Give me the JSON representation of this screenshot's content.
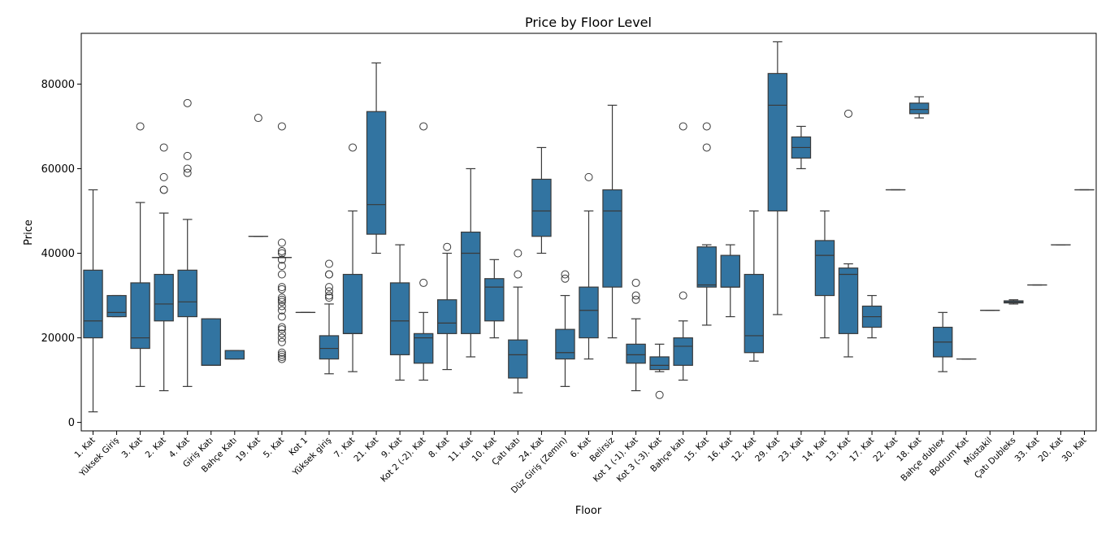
{
  "chart_data": {
    "type": "box",
    "title": "Price by Floor Level",
    "xlabel": "Floor",
    "ylabel": "Price",
    "ylim": [
      -2000,
      92000
    ],
    "yticks": [
      0,
      20000,
      40000,
      60000,
      80000
    ],
    "grid": false,
    "legend": "none",
    "box_color": "#3274a1",
    "line_color": "#3a3a3a",
    "categories": [
      "1. Kat",
      "Yüksek Giriş",
      "3. Kat",
      "2. Kat",
      "4. Kat",
      "Giriş Katı",
      "Bahçe Katı",
      "19. Kat",
      "5. Kat",
      "Kot 1",
      "Yüksek giriş",
      "7. Kat",
      "21. Kat",
      "9. Kat",
      "Kot 2 (-2). Kat",
      "8. Kat",
      "11. Kat",
      "10. Kat",
      "Çatı katı",
      "24. Kat",
      "Düz Giriş (Zemin)",
      "6. Kat",
      "Belirsiz",
      "Kot 1 (-1). Kat",
      "Kot 3 (-3). Kat",
      "Bahçe katı",
      "15. Kat",
      "16. Kat",
      "12. Kat",
      "29. Kat",
      "23. Kat",
      "14. Kat",
      "13. Kat",
      "17. Kat",
      "22. Kat",
      "18. Kat",
      "Bahçe dublex",
      "Bodrum Kat",
      "Müstakil",
      "Çatı Dubleks",
      "33. Kat",
      "20. Kat",
      "30. Kat"
    ],
    "boxes": [
      {
        "whislo": 2500,
        "q1": 20000,
        "med": 24000,
        "q3": 36000,
        "whishi": 55000,
        "fliers": []
      },
      {
        "whislo": 25000,
        "q1": 25000,
        "med": 26000,
        "q3": 30000,
        "whishi": 30000,
        "fliers": []
      },
      {
        "whislo": 8500,
        "q1": 17500,
        "med": 20000,
        "q3": 33000,
        "whishi": 52000,
        "fliers": [
          70000
        ]
      },
      {
        "whislo": 7500,
        "q1": 24000,
        "med": 28000,
        "q3": 35000,
        "whishi": 49500,
        "fliers": [
          55000,
          55000,
          58000,
          65000
        ]
      },
      {
        "whislo": 8500,
        "q1": 25000,
        "med": 28500,
        "q3": 36000,
        "whishi": 48000,
        "fliers": [
          59000,
          60000,
          63000,
          75500
        ]
      },
      {
        "whislo": 13500,
        "q1": 13500,
        "med": 13500,
        "q3": 24500,
        "whishi": 24500,
        "fliers": []
      },
      {
        "whislo": 15000,
        "q1": 15000,
        "med": 15000,
        "q3": 17000,
        "whishi": 17000,
        "fliers": []
      },
      {
        "whislo": 44000,
        "q1": 44000,
        "med": 44000,
        "q3": 44000,
        "whishi": 44000,
        "fliers": [
          72000
        ]
      },
      {
        "whislo": 39000,
        "q1": 39000,
        "med": 39000,
        "q3": 39000,
        "whishi": 39000,
        "fliers": [
          15000,
          15500,
          16000,
          16500,
          19000,
          20000,
          21000,
          22000,
          22500,
          25000,
          26500,
          27500,
          28500,
          29000,
          29500,
          31500,
          32000,
          35000,
          37000,
          38500,
          40000,
          40500,
          42500,
          70000
        ]
      },
      {
        "whislo": 26000,
        "q1": 26000,
        "med": 26000,
        "q3": 26000,
        "whishi": 26000,
        "fliers": []
      },
      {
        "whislo": 11500,
        "q1": 15000,
        "med": 17500,
        "q3": 20500,
        "whishi": 28000,
        "fliers": [
          29500,
          30000,
          31000,
          32000,
          35000,
          35000,
          37500
        ]
      },
      {
        "whislo": 12000,
        "q1": 21000,
        "med": 21000,
        "q3": 35000,
        "whishi": 50000,
        "fliers": [
          65000
        ]
      },
      {
        "whislo": 40000,
        "q1": 44500,
        "med": 51500,
        "q3": 73500,
        "whishi": 85000,
        "fliers": []
      },
      {
        "whislo": 10000,
        "q1": 16000,
        "med": 24000,
        "q3": 33000,
        "whishi": 42000,
        "fliers": []
      },
      {
        "whislo": 10000,
        "q1": 14000,
        "med": 20000,
        "q3": 21000,
        "whishi": 26000,
        "fliers": [
          33000,
          70000
        ]
      },
      {
        "whislo": 12500,
        "q1": 21000,
        "med": 23500,
        "q3": 29000,
        "whishi": 40000,
        "fliers": [
          41500
        ]
      },
      {
        "whislo": 15500,
        "q1": 21000,
        "med": 40000,
        "q3": 45000,
        "whishi": 60000,
        "fliers": []
      },
      {
        "whislo": 20000,
        "q1": 24000,
        "med": 32000,
        "q3": 34000,
        "whishi": 38500,
        "fliers": []
      },
      {
        "whislo": 7000,
        "q1": 10500,
        "med": 16000,
        "q3": 19500,
        "whishi": 32000,
        "fliers": [
          35000,
          40000
        ]
      },
      {
        "whislo": 40000,
        "q1": 44000,
        "med": 50000,
        "q3": 57500,
        "whishi": 65000,
        "fliers": []
      },
      {
        "whislo": 8500,
        "q1": 15000,
        "med": 16500,
        "q3": 22000,
        "whishi": 30000,
        "fliers": [
          34000,
          35000
        ]
      },
      {
        "whislo": 15000,
        "q1": 20000,
        "med": 26500,
        "q3": 32000,
        "whishi": 50000,
        "fliers": [
          58000
        ]
      },
      {
        "whislo": 20000,
        "q1": 32000,
        "med": 50000,
        "q3": 55000,
        "whishi": 75000,
        "fliers": []
      },
      {
        "whislo": 7500,
        "q1": 14000,
        "med": 16000,
        "q3": 18500,
        "whishi": 24500,
        "fliers": [
          29000,
          30000,
          33000
        ]
      },
      {
        "whislo": 12000,
        "q1": 12500,
        "med": 13500,
        "q3": 15500,
        "whishi": 18500,
        "fliers": [
          6500
        ]
      },
      {
        "whislo": 10000,
        "q1": 13500,
        "med": 18000,
        "q3": 20000,
        "whishi": 24000,
        "fliers": [
          30000,
          70000
        ]
      },
      {
        "whislo": 23000,
        "q1": 32000,
        "med": 32500,
        "q3": 41500,
        "whishi": 42000,
        "fliers": [
          65000,
          70000
        ]
      },
      {
        "whislo": 25000,
        "q1": 32000,
        "med": 32000,
        "q3": 39500,
        "whishi": 42000,
        "fliers": []
      },
      {
        "whislo": 14500,
        "q1": 16500,
        "med": 20500,
        "q3": 35000,
        "whishi": 50000,
        "fliers": []
      },
      {
        "whislo": 25500,
        "q1": 50000,
        "med": 75000,
        "q3": 82500,
        "whishi": 90000,
        "fliers": []
      },
      {
        "whislo": 60000,
        "q1": 62500,
        "med": 65000,
        "q3": 67500,
        "whishi": 70000,
        "fliers": []
      },
      {
        "whislo": 20000,
        "q1": 30000,
        "med": 39500,
        "q3": 43000,
        "whishi": 50000,
        "fliers": []
      },
      {
        "whislo": 15500,
        "q1": 21000,
        "med": 35000,
        "q3": 36500,
        "whishi": 37500,
        "fliers": [
          73000
        ]
      },
      {
        "whislo": 20000,
        "q1": 22500,
        "med": 25000,
        "q3": 27500,
        "whishi": 30000,
        "fliers": []
      },
      {
        "whislo": 55000,
        "q1": 55000,
        "med": 55000,
        "q3": 55000,
        "whishi": 55000,
        "fliers": []
      },
      {
        "whislo": 72000,
        "q1": 73000,
        "med": 74000,
        "q3": 75500,
        "whishi": 77000,
        "fliers": []
      },
      {
        "whislo": 12000,
        "q1": 15500,
        "med": 19000,
        "q3": 22500,
        "whishi": 26000,
        "fliers": []
      },
      {
        "whislo": 15000,
        "q1": 15000,
        "med": 15000,
        "q3": 15000,
        "whishi": 15000,
        "fliers": []
      },
      {
        "whislo": 26500,
        "q1": 26500,
        "med": 26500,
        "q3": 26500,
        "whishi": 26500,
        "fliers": []
      },
      {
        "whislo": 28000,
        "q1": 28250,
        "med": 28500,
        "q3": 28750,
        "whishi": 29000,
        "fliers": []
      },
      {
        "whislo": 32500,
        "q1": 32500,
        "med": 32500,
        "q3": 32500,
        "whishi": 32500,
        "fliers": []
      },
      {
        "whislo": 42000,
        "q1": 42000,
        "med": 42000,
        "q3": 42000,
        "whishi": 42000,
        "fliers": []
      },
      {
        "whislo": 55000,
        "q1": 55000,
        "med": 55000,
        "q3": 55000,
        "whishi": 55000,
        "fliers": []
      }
    ]
  }
}
